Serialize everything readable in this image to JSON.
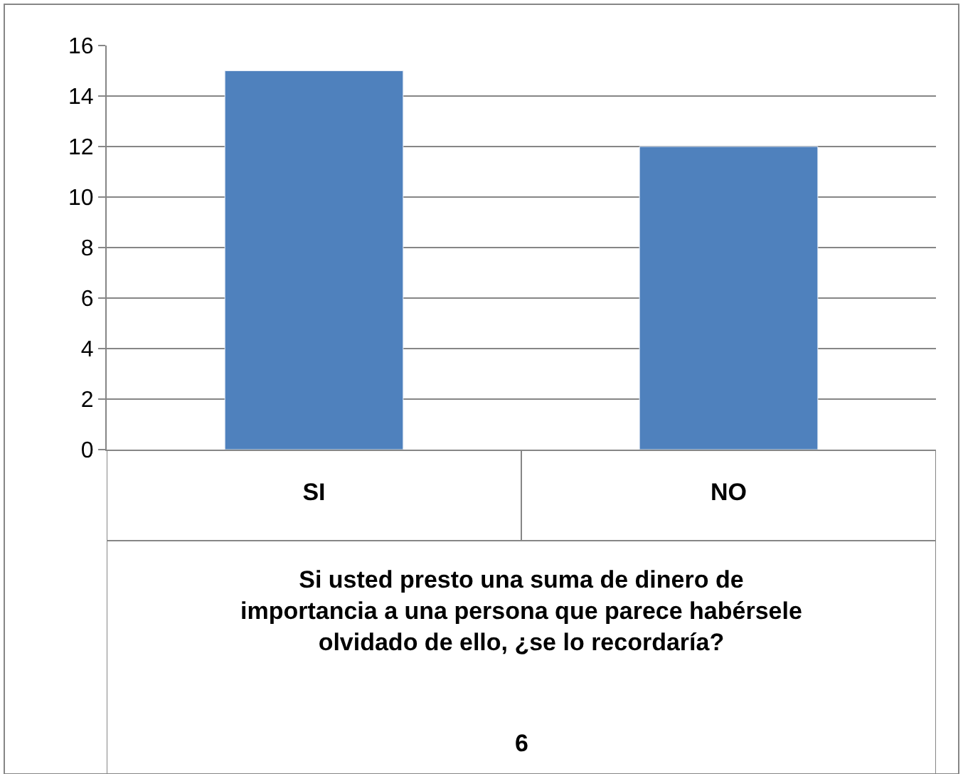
{
  "chart_data": {
    "type": "bar",
    "xlabel": "Si usted presto una suma de dinero de importancia a una persona que parece habérsele olvidado de ello, ¿se lo recordaría?",
    "annotations": [
      "6"
    ],
    "categories": [
      "SI",
      "NO"
    ],
    "values": [
      15,
      12
    ],
    "color": "#4f81bd",
    "ylim": [
      0,
      16
    ],
    "yticks": [
      0,
      2,
      4,
      6,
      8,
      10,
      12,
      14,
      16
    ],
    "grid": "y",
    "legend": false
  }
}
